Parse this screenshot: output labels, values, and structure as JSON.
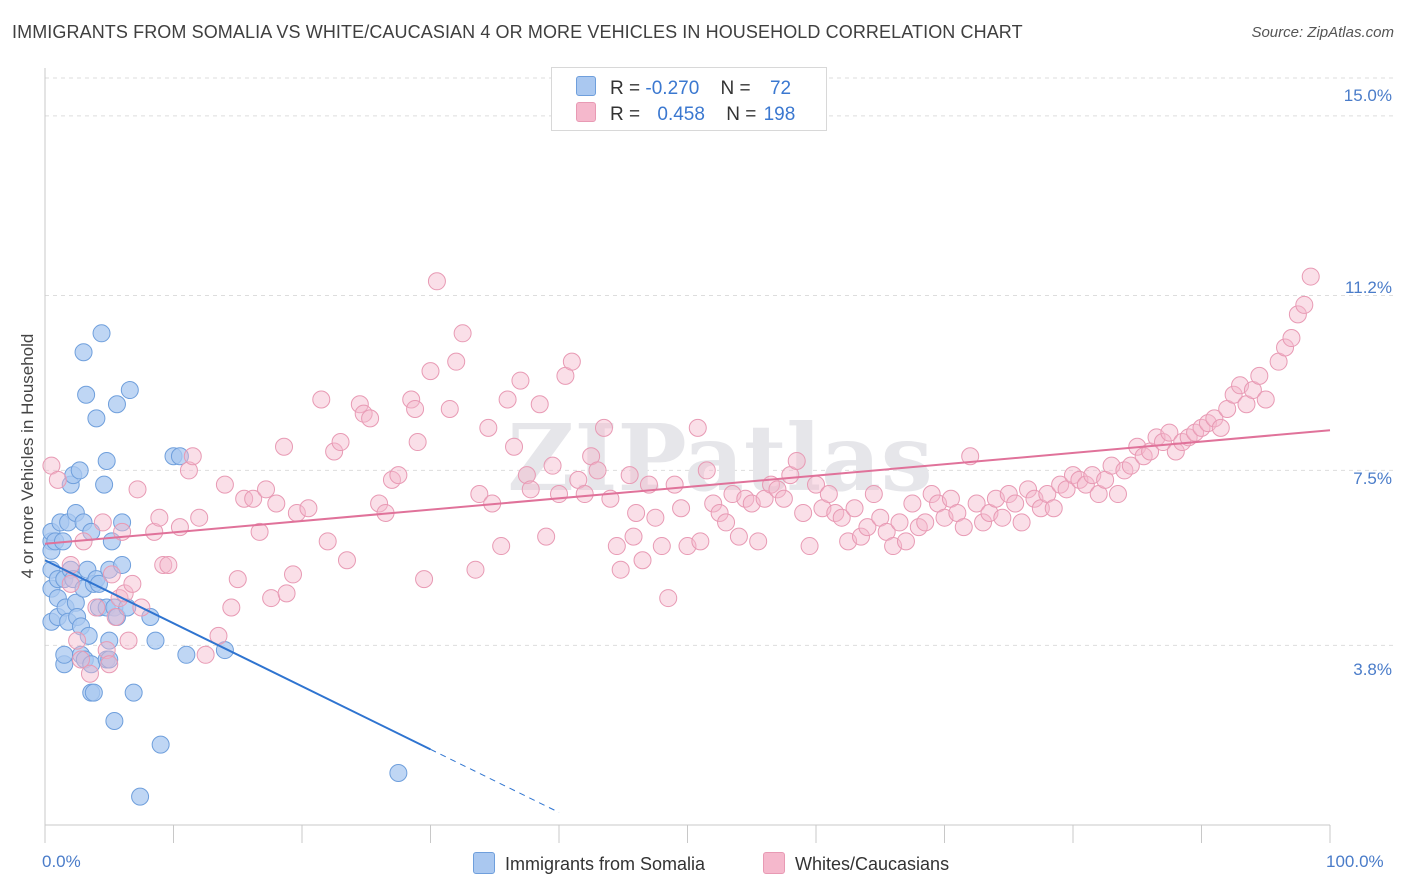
{
  "title": "IMMIGRANTS FROM SOMALIA VS WHITE/CAUCASIAN 4 OR MORE VEHICLES IN HOUSEHOLD CORRELATION CHART",
  "source": "Source: ZipAtlas.com",
  "watermark": "ZIPatlas",
  "legend": {
    "rows": [
      {
        "r_label": "R =",
        "r_value": "-0.270",
        "n_label": "N =",
        "n_value": "72"
      },
      {
        "r_label": "R =",
        "r_value": "0.458",
        "n_label": "N =",
        "n_value": "198"
      }
    ]
  },
  "bottom_legend": {
    "items": [
      "Immigrants from Somalia",
      "Whites/Caucasians"
    ]
  },
  "colors": {
    "blue_fill": "#aac8f0",
    "blue_stroke": "#6f9fdc",
    "blue_line": "#2f74d0",
    "pink_fill": "#f5b8cc",
    "pink_stroke": "#e89ab4",
    "pink_line": "#e0729a",
    "tick_label": "#4a7cc9",
    "grid": "#dddddd"
  },
  "chart_data": {
    "type": "scatter",
    "title": "IMMIGRANTS FROM SOMALIA VS WHITE/CAUCASIAN 4 OR MORE VEHICLES IN HOUSEHOLD CORRELATION CHART",
    "xlabel": "",
    "ylabel": "4 or more Vehicles in Household",
    "xlim": [
      0,
      100
    ],
    "ylim": [
      0,
      15.8
    ],
    "x_ticks": [
      "0.0%",
      "100.0%"
    ],
    "y_ticks": [
      {
        "value": 3.8,
        "label": "3.8%"
      },
      {
        "value": 7.5,
        "label": "7.5%"
      },
      {
        "value": 11.2,
        "label": "11.2%"
      },
      {
        "value": 15.0,
        "label": "15.0%"
      }
    ],
    "grid": "horizontal dashed",
    "legend_position": "top-center",
    "series": [
      {
        "name": "Immigrants from Somalia",
        "color": "#6f9fdc",
        "trend": {
          "x0": 0,
          "y0": 5.6,
          "x1": 30,
          "y1": 1.6,
          "dashed_to_x": 40
        },
        "points": [
          [
            0.5,
            6.0
          ],
          [
            0.5,
            5.8
          ],
          [
            0.5,
            5.4
          ],
          [
            0.5,
            5.0
          ],
          [
            0.5,
            4.3
          ],
          [
            0.5,
            6.2
          ],
          [
            0.8,
            6.0
          ],
          [
            1.0,
            4.8
          ],
          [
            1.0,
            4.4
          ],
          [
            1.0,
            5.2
          ],
          [
            1.2,
            6.4
          ],
          [
            1.4,
            6.0
          ],
          [
            1.5,
            5.2
          ],
          [
            1.5,
            3.4
          ],
          [
            1.5,
            3.6
          ],
          [
            1.6,
            4.6
          ],
          [
            1.8,
            6.4
          ],
          [
            1.8,
            4.3
          ],
          [
            2.0,
            7.2
          ],
          [
            2.0,
            5.4
          ],
          [
            2.2,
            5.2
          ],
          [
            2.2,
            7.4
          ],
          [
            2.4,
            6.6
          ],
          [
            2.4,
            4.7
          ],
          [
            2.5,
            4.4
          ],
          [
            2.7,
            7.5
          ],
          [
            2.8,
            4.2
          ],
          [
            2.8,
            3.6
          ],
          [
            3.0,
            5.0
          ],
          [
            3.0,
            10.0
          ],
          [
            3.0,
            6.4
          ],
          [
            3.1,
            3.5
          ],
          [
            3.2,
            9.1
          ],
          [
            3.3,
            5.4
          ],
          [
            3.4,
            4.0
          ],
          [
            3.6,
            2.8
          ],
          [
            3.6,
            6.2
          ],
          [
            3.6,
            3.4
          ],
          [
            3.8,
            2.8
          ],
          [
            3.8,
            5.1
          ],
          [
            4.0,
            8.6
          ],
          [
            4.0,
            5.2
          ],
          [
            4.2,
            5.1
          ],
          [
            4.2,
            4.6
          ],
          [
            4.4,
            10.4
          ],
          [
            4.6,
            7.2
          ],
          [
            4.8,
            3.5
          ],
          [
            4.8,
            4.6
          ],
          [
            4.8,
            7.7
          ],
          [
            5.0,
            3.9
          ],
          [
            5.0,
            5.4
          ],
          [
            5.0,
            3.5
          ],
          [
            5.2,
            6.0
          ],
          [
            5.4,
            2.2
          ],
          [
            5.4,
            4.6
          ],
          [
            5.6,
            8.9
          ],
          [
            5.6,
            4.4
          ],
          [
            6.0,
            6.4
          ],
          [
            6.0,
            5.5
          ],
          [
            6.4,
            4.6
          ],
          [
            6.6,
            9.2
          ],
          [
            6.9,
            2.8
          ],
          [
            7.4,
            0.6
          ],
          [
            8.2,
            4.4
          ],
          [
            8.6,
            3.9
          ],
          [
            9.0,
            1.7
          ],
          [
            10.0,
            7.8
          ],
          [
            10.5,
            7.8
          ],
          [
            11.0,
            3.6
          ],
          [
            14.0,
            3.7
          ],
          [
            27.5,
            1.1
          ]
        ]
      },
      {
        "name": "Whites/Caucasians",
        "color": "#e89ab4",
        "trend": {
          "x0": 0,
          "y0": 5.95,
          "x1": 100,
          "y1": 8.35
        },
        "points": [
          [
            0.5,
            7.6
          ],
          [
            1.0,
            7.3
          ],
          [
            2.0,
            5.5
          ],
          [
            2.0,
            5.1
          ],
          [
            2.5,
            3.9
          ],
          [
            2.8,
            3.5
          ],
          [
            3.0,
            6.0
          ],
          [
            3.5,
            3.2
          ],
          [
            4.0,
            4.6
          ],
          [
            4.5,
            6.4
          ],
          [
            4.8,
            3.7
          ],
          [
            5.0,
            3.4
          ],
          [
            5.2,
            5.3
          ],
          [
            5.5,
            4.4
          ],
          [
            5.8,
            4.8
          ],
          [
            6.0,
            6.2
          ],
          [
            6.2,
            4.9
          ],
          [
            6.5,
            3.9
          ],
          [
            6.8,
            5.1
          ],
          [
            7.2,
            7.1
          ],
          [
            7.5,
            4.6
          ],
          [
            8.5,
            6.2
          ],
          [
            8.9,
            6.5
          ],
          [
            9.2,
            5.5
          ],
          [
            9.6,
            5.5
          ],
          [
            10.5,
            6.3
          ],
          [
            11.2,
            7.5
          ],
          [
            11.5,
            7.8
          ],
          [
            12.0,
            6.5
          ],
          [
            12.5,
            3.6
          ],
          [
            13.5,
            4.0
          ],
          [
            14.0,
            7.2
          ],
          [
            14.5,
            4.6
          ],
          [
            15.0,
            5.2
          ],
          [
            15.5,
            6.9
          ],
          [
            16.2,
            6.9
          ],
          [
            16.7,
            6.2
          ],
          [
            17.2,
            7.1
          ],
          [
            17.6,
            4.8
          ],
          [
            18.0,
            6.8
          ],
          [
            18.6,
            8.0
          ],
          [
            18.8,
            4.9
          ],
          [
            19.3,
            5.3
          ],
          [
            19.6,
            6.6
          ],
          [
            20.5,
            6.7
          ],
          [
            21.5,
            9.0
          ],
          [
            22.0,
            6.0
          ],
          [
            22.5,
            7.9
          ],
          [
            23.0,
            8.1
          ],
          [
            23.5,
            5.6
          ],
          [
            24.5,
            8.9
          ],
          [
            24.8,
            8.7
          ],
          [
            25.3,
            8.6
          ],
          [
            26.0,
            6.8
          ],
          [
            26.5,
            6.6
          ],
          [
            27.0,
            7.3
          ],
          [
            27.5,
            7.4
          ],
          [
            28.5,
            9.0
          ],
          [
            28.8,
            8.8
          ],
          [
            29.0,
            8.1
          ],
          [
            29.5,
            5.2
          ],
          [
            30.0,
            9.6
          ],
          [
            30.5,
            11.5
          ],
          [
            31.5,
            8.8
          ],
          [
            32.0,
            9.8
          ],
          [
            32.5,
            10.4
          ],
          [
            33.5,
            5.4
          ],
          [
            33.8,
            7.0
          ],
          [
            34.5,
            8.4
          ],
          [
            34.8,
            6.8
          ],
          [
            35.5,
            5.9
          ],
          [
            36.0,
            9.0
          ],
          [
            36.5,
            8.0
          ],
          [
            37.0,
            9.4
          ],
          [
            37.5,
            7.4
          ],
          [
            37.8,
            7.1
          ],
          [
            38.5,
            8.9
          ],
          [
            39.0,
            6.1
          ],
          [
            39.5,
            7.6
          ],
          [
            40.0,
            7.0
          ],
          [
            40.5,
            9.5
          ],
          [
            41.0,
            9.8
          ],
          [
            41.5,
            7.3
          ],
          [
            42.0,
            7.0
          ],
          [
            42.5,
            7.8
          ],
          [
            43.0,
            7.5
          ],
          [
            43.5,
            8.4
          ],
          [
            44.0,
            6.9
          ],
          [
            44.5,
            5.9
          ],
          [
            44.8,
            5.4
          ],
          [
            45.5,
            7.4
          ],
          [
            45.8,
            6.1
          ],
          [
            46.0,
            6.6
          ],
          [
            46.5,
            5.6
          ],
          [
            47.0,
            7.2
          ],
          [
            47.5,
            6.5
          ],
          [
            48.0,
            5.9
          ],
          [
            48.5,
            4.8
          ],
          [
            49.0,
            7.2
          ],
          [
            49.5,
            6.7
          ],
          [
            50.0,
            5.9
          ],
          [
            50.8,
            8.4
          ],
          [
            51.0,
            6.0
          ],
          [
            51.5,
            7.5
          ],
          [
            52.0,
            6.8
          ],
          [
            52.5,
            6.6
          ],
          [
            53.0,
            6.4
          ],
          [
            53.5,
            7.0
          ],
          [
            54.0,
            6.1
          ],
          [
            54.5,
            6.9
          ],
          [
            55.0,
            6.8
          ],
          [
            55.5,
            6.0
          ],
          [
            56.0,
            6.9
          ],
          [
            56.5,
            7.2
          ],
          [
            57.0,
            7.1
          ],
          [
            57.5,
            6.9
          ],
          [
            58.0,
            7.4
          ],
          [
            58.5,
            7.7
          ],
          [
            59.0,
            6.6
          ],
          [
            59.5,
            5.9
          ],
          [
            60.0,
            7.2
          ],
          [
            60.5,
            6.7
          ],
          [
            61.0,
            7.0
          ],
          [
            61.5,
            6.6
          ],
          [
            62.0,
            6.5
          ],
          [
            62.5,
            6.0
          ],
          [
            63.0,
            6.7
          ],
          [
            63.5,
            6.1
          ],
          [
            64.0,
            6.3
          ],
          [
            64.5,
            7.0
          ],
          [
            65.0,
            6.5
          ],
          [
            65.5,
            6.2
          ],
          [
            66.0,
            5.9
          ],
          [
            66.5,
            6.4
          ],
          [
            67.0,
            6.0
          ],
          [
            67.5,
            6.8
          ],
          [
            68.0,
            6.3
          ],
          [
            68.5,
            6.4
          ],
          [
            69.0,
            7.0
          ],
          [
            69.5,
            6.8
          ],
          [
            70.0,
            6.5
          ],
          [
            70.5,
            6.9
          ],
          [
            71.0,
            6.6
          ],
          [
            71.5,
            6.3
          ],
          [
            72.0,
            7.8
          ],
          [
            72.5,
            6.8
          ],
          [
            73.0,
            6.4
          ],
          [
            73.5,
            6.6
          ],
          [
            74.0,
            6.9
          ],
          [
            74.5,
            6.5
          ],
          [
            75.0,
            7.0
          ],
          [
            75.5,
            6.8
          ],
          [
            76.0,
            6.4
          ],
          [
            76.5,
            7.1
          ],
          [
            77.0,
            6.9
          ],
          [
            77.5,
            6.7
          ],
          [
            78.0,
            7.0
          ],
          [
            78.5,
            6.7
          ],
          [
            79.0,
            7.2
          ],
          [
            79.5,
            7.1
          ],
          [
            80.0,
            7.4
          ],
          [
            80.5,
            7.3
          ],
          [
            81.0,
            7.2
          ],
          [
            81.5,
            7.4
          ],
          [
            82.0,
            7.0
          ],
          [
            82.5,
            7.3
          ],
          [
            83.0,
            7.6
          ],
          [
            83.5,
            7.0
          ],
          [
            84.0,
            7.5
          ],
          [
            84.5,
            7.6
          ],
          [
            85.0,
            8.0
          ],
          [
            85.5,
            7.8
          ],
          [
            86.0,
            7.9
          ],
          [
            86.5,
            8.2
          ],
          [
            87.0,
            8.1
          ],
          [
            87.5,
            8.3
          ],
          [
            88.0,
            7.9
          ],
          [
            88.5,
            8.1
          ],
          [
            89.0,
            8.2
          ],
          [
            89.5,
            8.3
          ],
          [
            90.0,
            8.4
          ],
          [
            90.5,
            8.5
          ],
          [
            91.0,
            8.6
          ],
          [
            91.5,
            8.4
          ],
          [
            92.0,
            8.8
          ],
          [
            92.5,
            9.1
          ],
          [
            93.0,
            9.3
          ],
          [
            93.5,
            8.9
          ],
          [
            94.0,
            9.2
          ],
          [
            94.5,
            9.5
          ],
          [
            95.0,
            9.0
          ],
          [
            96.0,
            9.8
          ],
          [
            96.5,
            10.1
          ],
          [
            97.0,
            10.3
          ],
          [
            97.5,
            10.8
          ],
          [
            98.0,
            11.0
          ],
          [
            98.5,
            11.6
          ]
        ]
      }
    ]
  }
}
